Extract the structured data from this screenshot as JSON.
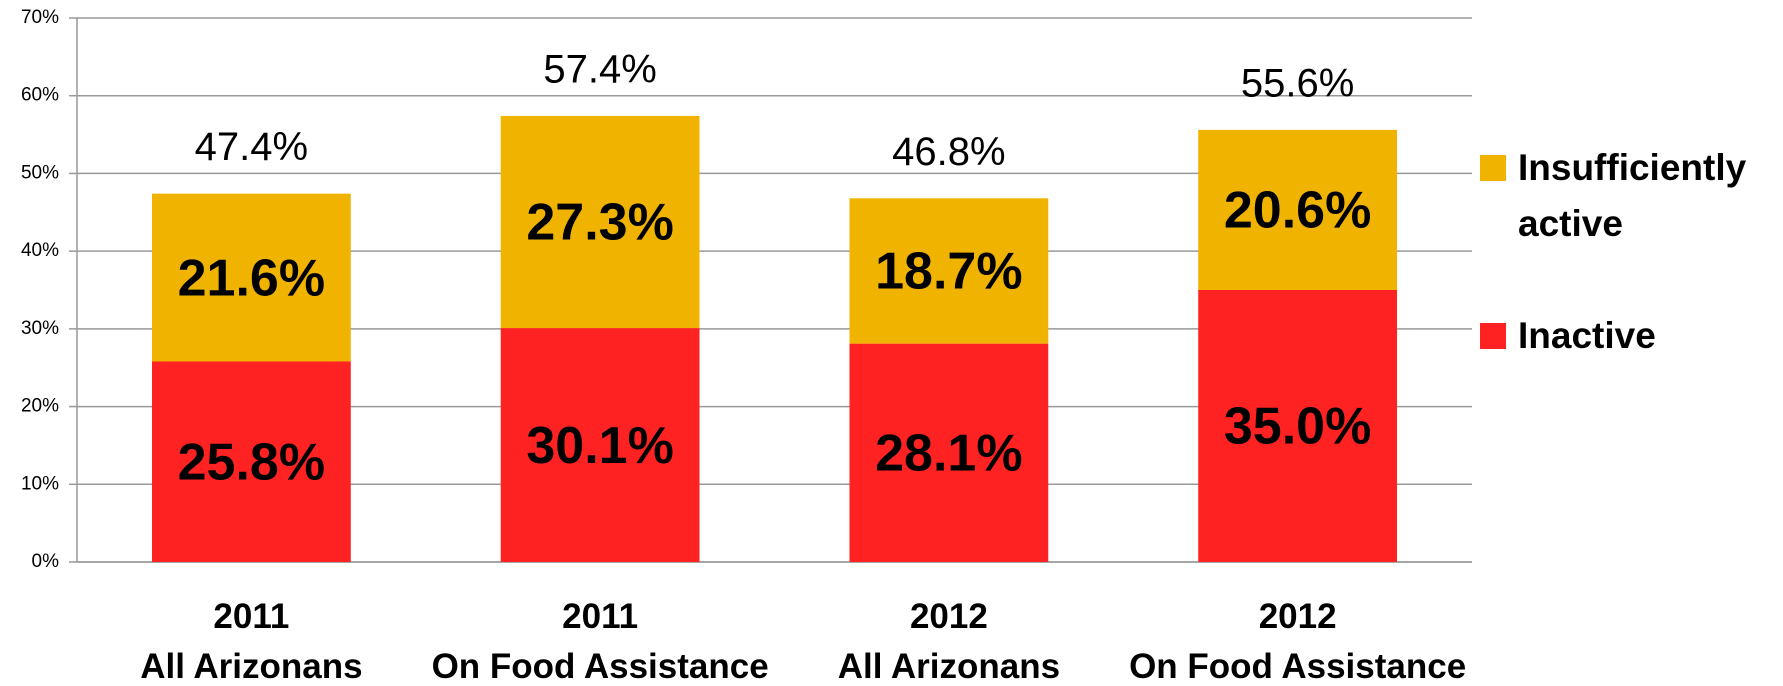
{
  "chart_data": {
    "type": "stacked_bar",
    "categories": [
      [
        "2011",
        "All Arizonans"
      ],
      [
        "2011",
        "On Food Assistance"
      ],
      [
        "2012",
        "All Arizonans"
      ],
      [
        "2012",
        "On Food Assistance"
      ]
    ],
    "series": [
      {
        "name": "Inactive",
        "color": "#ff2222",
        "values": [
          25.8,
          30.1,
          28.1,
          35.0
        ],
        "value_labels": [
          "25.8%",
          "30.1%",
          "28.1%",
          "35.0%"
        ]
      },
      {
        "name": "Insufficiently active",
        "color": "#f0b400",
        "values": [
          21.6,
          27.3,
          18.7,
          20.6
        ],
        "value_labels": [
          "21.6%",
          "27.3%",
          "18.7%",
          "20.6%"
        ]
      }
    ],
    "totals": [
      47.4,
      57.4,
      46.8,
      55.6
    ],
    "total_labels": [
      "47.4%",
      "57.4%",
      "46.8%",
      "55.6%"
    ],
    "ylim": [
      0,
      70
    ],
    "yticks": [
      {
        "value": 0,
        "label": "0%"
      },
      {
        "value": 10,
        "label": "10%"
      },
      {
        "value": 20,
        "label": "20%"
      },
      {
        "value": 30,
        "label": "30%"
      },
      {
        "value": 40,
        "label": "40%"
      },
      {
        "value": 50,
        "label": "50%"
      },
      {
        "value": 60,
        "label": "60%"
      },
      {
        "value": 70,
        "label": "70%"
      }
    ],
    "grid": true,
    "legend": "right"
  }
}
